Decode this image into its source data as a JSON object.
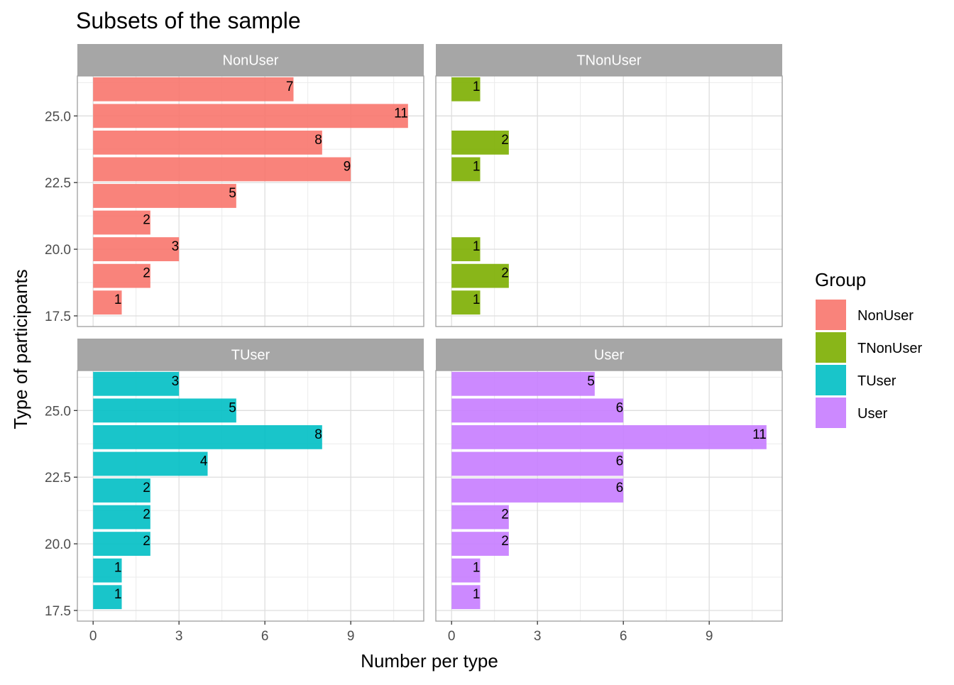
{
  "chart_data": {
    "type": "bar",
    "orientation": "horizontal",
    "title": "Subsets of the sample",
    "xlabel": "Number per type",
    "ylabel": "Type of participants",
    "legend": {
      "title": "Group",
      "position": "right",
      "entries": [
        "NonUser",
        "TNonUser",
        "TUser",
        "User"
      ]
    },
    "grid": true,
    "xlim": [
      -0.55,
      11.55
    ],
    "ylim": [
      17.1,
      26.5
    ],
    "x_ticks": [
      "0",
      "3",
      "6",
      "9"
    ],
    "y_ticks": [
      "17.5",
      "20.0",
      "22.5",
      "25.0"
    ],
    "colors": {
      "NonUser": "#F8766D",
      "TNonUser": "#7CAE00",
      "TUser": "#00BFC4",
      "User": "#C77CFF"
    },
    "panels": [
      {
        "name": "NonUser",
        "points": [
          {
            "y": 18,
            "x": 1
          },
          {
            "y": 19,
            "x": 2
          },
          {
            "y": 20,
            "x": 3
          },
          {
            "y": 21,
            "x": 2
          },
          {
            "y": 22,
            "x": 5
          },
          {
            "y": 23,
            "x": 9
          },
          {
            "y": 24,
            "x": 8
          },
          {
            "y": 25,
            "x": 11
          },
          {
            "y": 26,
            "x": 7
          }
        ]
      },
      {
        "name": "TNonUser",
        "points": [
          {
            "y": 18,
            "x": 1
          },
          {
            "y": 19,
            "x": 2
          },
          {
            "y": 20,
            "x": 1
          },
          {
            "y": 23,
            "x": 1
          },
          {
            "y": 24,
            "x": 2
          },
          {
            "y": 26,
            "x": 1
          }
        ]
      },
      {
        "name": "TUser",
        "points": [
          {
            "y": 18,
            "x": 1
          },
          {
            "y": 19,
            "x": 1
          },
          {
            "y": 20,
            "x": 2
          },
          {
            "y": 21,
            "x": 2
          },
          {
            "y": 22,
            "x": 2
          },
          {
            "y": 23,
            "x": 4
          },
          {
            "y": 24,
            "x": 8
          },
          {
            "y": 25,
            "x": 5
          },
          {
            "y": 26,
            "x": 3
          }
        ]
      },
      {
        "name": "User",
        "points": [
          {
            "y": 18,
            "x": 1
          },
          {
            "y": 19,
            "x": 1
          },
          {
            "y": 20,
            "x": 2
          },
          {
            "y": 21,
            "x": 2
          },
          {
            "y": 22,
            "x": 6
          },
          {
            "y": 23,
            "x": 6
          },
          {
            "y": 24,
            "x": 11
          },
          {
            "y": 25,
            "x": 6
          },
          {
            "y": 26,
            "x": 5
          }
        ]
      }
    ]
  }
}
